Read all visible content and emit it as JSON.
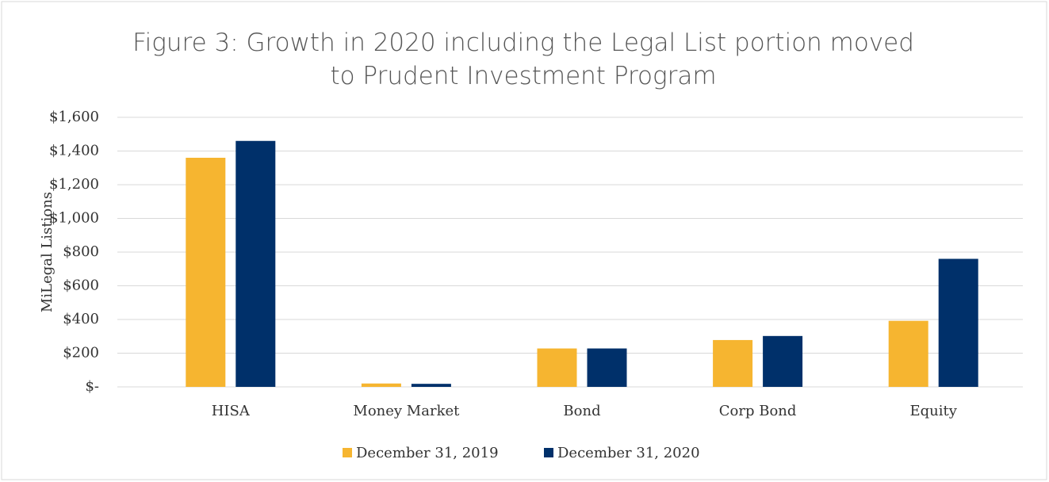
{
  "chart_data": {
    "type": "bar",
    "title": "Figure 3: Growth in 2020 including the Legal List portion moved to Prudent Investment Program",
    "y_label": "MiLegal Listions",
    "categories": [
      "HISA",
      "Money Market",
      "Bond",
      "Corp Bond",
      "Equity"
    ],
    "series": [
      {
        "name": "December 31, 2019",
        "color": "#f6b530",
        "values": [
          1360,
          20,
          228,
          278,
          392
        ]
      },
      {
        "name": "December 31, 2020",
        "color": "#00306a",
        "values": [
          1460,
          18,
          228,
          302,
          760
        ]
      }
    ],
    "ylim": [
      0,
      1600
    ],
    "yticks": [
      {
        "value": 0,
        "label": "$-"
      },
      {
        "value": 200,
        "label": "$200"
      },
      {
        "value": 400,
        "label": "$400"
      },
      {
        "value": 600,
        "label": "$600"
      },
      {
        "value": 800,
        "label": "$800"
      },
      {
        "value": 1000,
        "label": "$1,000"
      },
      {
        "value": 1200,
        "label": "$1,200"
      },
      {
        "value": 1400,
        "label": "$1,400"
      },
      {
        "value": 1600,
        "label": "$1,600"
      }
    ],
    "grid": true,
    "legend": "bottom"
  }
}
